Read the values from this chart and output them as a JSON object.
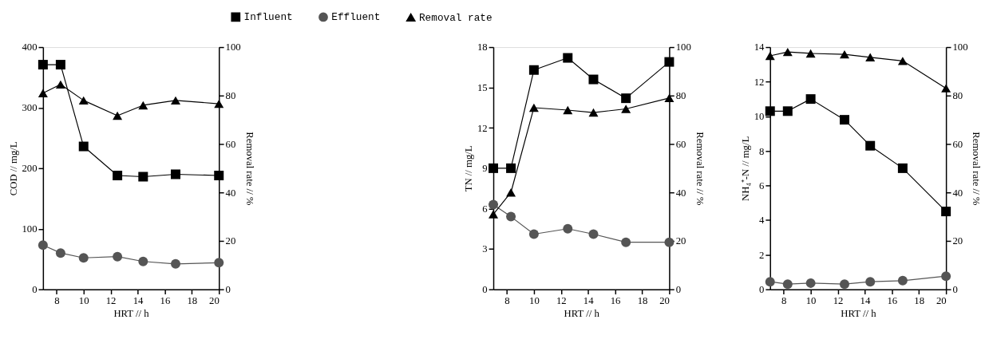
{
  "chart_data": [
    {
      "type": "line",
      "xlabel": "HRT // h",
      "ylabel": "COD // mg/L",
      "y2label": "Removal rate // %",
      "legend": "top",
      "x": [
        7,
        8.3,
        10,
        12.5,
        14.4,
        16.8,
        20
      ],
      "xlim": [
        7,
        20
      ],
      "xticks": [
        8,
        10,
        12,
        14,
        16,
        18,
        20
      ],
      "ylim": [
        0,
        400
      ],
      "yticks": [
        0,
        100,
        200,
        300,
        400
      ],
      "y2lim": [
        0,
        100
      ],
      "y2ticks": [
        0,
        20,
        40,
        60,
        80,
        100
      ],
      "series": [
        {
          "name": "Influent",
          "color": "#000000",
          "marker": "square",
          "values": [
            371,
            371,
            236,
            188,
            186,
            190,
            188
          ]
        },
        {
          "name": "Effluent",
          "color": "#555555",
          "marker": "circle",
          "values": [
            73,
            60,
            52,
            54,
            46,
            42,
            44
          ]
        },
        {
          "name": "Removal rate",
          "color": "#000000",
          "marker": "triangle",
          "axis": "y2",
          "values": [
            81,
            84.6,
            78,
            71.7,
            76,
            78,
            76.6
          ]
        }
      ]
    },
    {
      "type": "line",
      "xlabel": "HRT // h",
      "ylabel": "TN // mg/L",
      "y2label": "Removal rate // %",
      "legend": false,
      "x": [
        7,
        8.3,
        10,
        12.5,
        14.4,
        16.8,
        20
      ],
      "xlim": [
        7,
        20
      ],
      "xticks": [
        8,
        10,
        12,
        14,
        16,
        18,
        20
      ],
      "ylim": [
        0,
        18
      ],
      "yticks": [
        0,
        3,
        6,
        9,
        12,
        15,
        18
      ],
      "y2lim": [
        0,
        100
      ],
      "y2ticks": [
        0,
        20,
        40,
        60,
        80,
        100
      ],
      "series": [
        {
          "color": "#000000",
          "marker": "square",
          "values": [
            9.0,
            9.0,
            16.3,
            17.2,
            15.6,
            14.2,
            16.9
          ]
        },
        {
          "color": "#555555",
          "marker": "circle",
          "values": [
            6.3,
            5.4,
            4.1,
            4.5,
            4.1,
            3.5,
            3.5
          ]
        },
        {
          "color": "#000000",
          "marker": "triangle",
          "axis": "y2",
          "values": [
            31,
            40,
            75,
            74,
            73,
            74.5,
            79
          ]
        }
      ]
    },
    {
      "type": "line",
      "xlabel": "HRT // h",
      "ylabel": "NH₄⁺-N // mg/L",
      "y2label": "Removal rate // %",
      "legend": false,
      "x": [
        7,
        8.3,
        10,
        12.5,
        14.4,
        16.8,
        20
      ],
      "xlim": [
        7,
        20
      ],
      "xticks": [
        8,
        10,
        12,
        14,
        16,
        18,
        20
      ],
      "ylim": [
        0,
        14
      ],
      "yticks": [
        0,
        2,
        4,
        6,
        8,
        10,
        12,
        14
      ],
      "y2lim": [
        0,
        100
      ],
      "y2ticks": [
        0,
        20,
        40,
        60,
        80,
        100
      ],
      "series": [
        {
          "color": "#000000",
          "marker": "square",
          "values": [
            10.3,
            10.3,
            11.0,
            9.8,
            8.3,
            7.0,
            4.5
          ]
        },
        {
          "color": "#555555",
          "marker": "circle",
          "values": [
            0.44,
            0.3,
            0.36,
            0.3,
            0.44,
            0.5,
            0.76
          ]
        },
        {
          "color": "#000000",
          "marker": "triangle",
          "axis": "y2",
          "values": [
            96.4,
            98,
            97.4,
            97,
            95.8,
            94.3,
            83
          ]
        }
      ]
    }
  ]
}
